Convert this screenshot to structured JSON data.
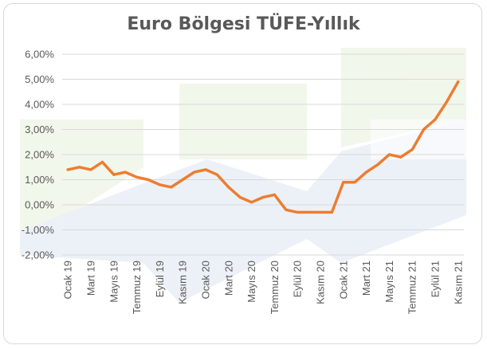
{
  "chart_data": {
    "type": "line",
    "title": "Euro Bölgesi TÜFE-Yıllık",
    "xlabel": "",
    "ylabel": "",
    "ylim": [
      -2,
      6
    ],
    "yticks": [
      "6,00%",
      "5,00%",
      "4,00%",
      "3,00%",
      "2,00%",
      "1,00%",
      "0,00%",
      "-1,00%",
      "-2,00%"
    ],
    "x": [
      "Ocak 19",
      "Şubat 19",
      "Mart 19",
      "Nisan 19",
      "Mayıs 19",
      "Haziran 19",
      "Temmuz 19",
      "Ağustos 19",
      "Eylül 19",
      "Ekim 19",
      "Kasım 19",
      "Aralık 19",
      "Ocak 20",
      "Şubat 20",
      "Mart 20",
      "Nisan 20",
      "Mayıs 20",
      "Haziran 20",
      "Temmuz 20",
      "Ağustos 20",
      "Eylül 20",
      "Ekim 20",
      "Kasım 20",
      "Aralık 20",
      "Ocak 21",
      "Şubat 21",
      "Mart 21",
      "Nisan 21",
      "Mayıs 21",
      "Haziran 21",
      "Temmuz 21",
      "Ağustos 21",
      "Eylül 21",
      "Ekim 21",
      "Kasım 21"
    ],
    "xtick_labels": [
      "Ocak 19",
      "Mart 19",
      "Mayıs 19",
      "Temmuz 19",
      "Eylül 19",
      "Kasım 19",
      "Ocak 20",
      "Mart 20",
      "Mayıs 20",
      "Temmuz 20",
      "Eylül 20",
      "Kasım 20",
      "Ocak 21",
      "Mart 21",
      "Mayıs 21",
      "Temmuz 21",
      "Eylül 21",
      "Kasım 21"
    ],
    "values": [
      1.4,
      1.5,
      1.4,
      1.7,
      1.2,
      1.3,
      1.1,
      1.0,
      0.8,
      0.7,
      1.0,
      1.3,
      1.4,
      1.2,
      0.7,
      0.3,
      0.1,
      0.3,
      0.4,
      -0.2,
      -0.3,
      -0.3,
      -0.3,
      -0.3,
      0.9,
      0.9,
      1.3,
      1.6,
      2.0,
      1.9,
      2.2,
      3.0,
      3.4,
      4.1,
      4.9
    ],
    "grid": true,
    "legend": "none",
    "colors": {
      "line": "#ED7D31",
      "grid": "#d9d9d9",
      "text": "#595959"
    }
  }
}
